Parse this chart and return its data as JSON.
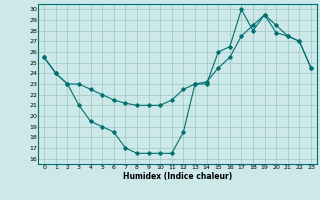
{
  "line1_x": [
    0,
    1,
    2,
    3,
    4,
    5,
    6,
    7,
    8,
    9,
    10,
    11,
    12,
    13,
    14,
    15,
    16,
    17,
    18,
    19,
    20,
    21,
    22,
    23
  ],
  "line1_y": [
    25.5,
    24.0,
    23.0,
    23.0,
    22.5,
    22.0,
    21.5,
    21.2,
    21.0,
    21.0,
    21.0,
    21.5,
    22.5,
    23.0,
    23.2,
    24.5,
    25.5,
    27.5,
    28.5,
    29.5,
    27.8,
    27.5,
    27.0,
    24.5
  ],
  "line2_x": [
    0,
    1,
    2,
    3,
    4,
    5,
    6,
    7,
    8,
    9,
    10,
    11,
    12,
    13,
    14,
    15,
    16,
    17,
    18,
    19,
    20,
    21,
    22,
    23
  ],
  "line2_y": [
    25.5,
    24.0,
    23.0,
    21.0,
    19.5,
    19.0,
    18.5,
    17.0,
    16.5,
    16.5,
    16.5,
    16.5,
    18.5,
    23.0,
    23.0,
    26.0,
    26.5,
    30.0,
    28.0,
    29.5,
    28.5,
    27.5,
    27.0,
    24.5
  ],
  "line_color": "#007070",
  "bg_color": "#cce8e8",
  "grid_color": "#9dc4c4",
  "xlabel": "Humidex (Indice chaleur)",
  "xlim": [
    -0.5,
    23.5
  ],
  "ylim": [
    15.5,
    30.5
  ],
  "yticks": [
    16,
    17,
    18,
    19,
    20,
    21,
    22,
    23,
    24,
    25,
    26,
    27,
    28,
    29,
    30
  ],
  "xticks": [
    0,
    1,
    2,
    3,
    4,
    5,
    6,
    7,
    8,
    9,
    10,
    11,
    12,
    13,
    14,
    15,
    16,
    17,
    18,
    19,
    20,
    21,
    22,
    23
  ]
}
